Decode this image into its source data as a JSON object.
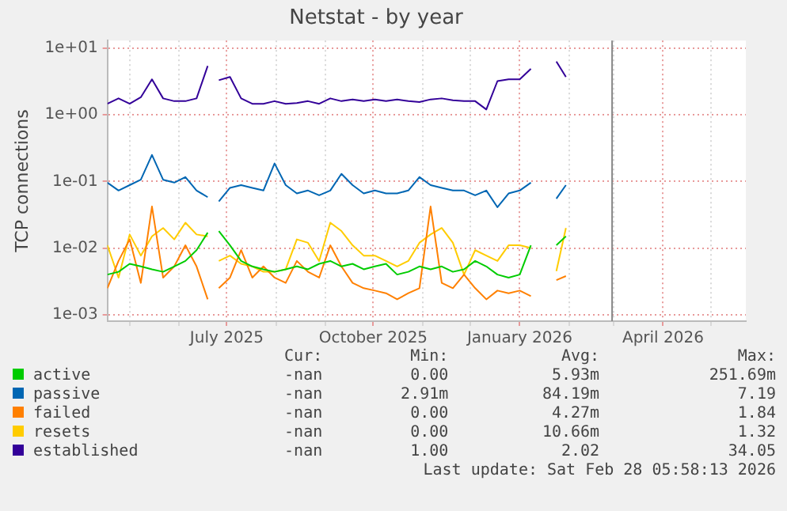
{
  "chart_data": {
    "type": "line",
    "title": "Netstat - by year",
    "ylabel": "TCP connections",
    "x": [
      "2025-04-17",
      "2025-04-24",
      "2025-05-01",
      "2025-05-08",
      "2025-05-15",
      "2025-05-22",
      "2025-05-29",
      "2025-06-05",
      "2025-06-12",
      "2025-06-19",
      "2025-06-22",
      "2025-06-26",
      "2025-07-03",
      "2025-07-10",
      "2025-07-17",
      "2025-07-24",
      "2025-07-31",
      "2025-08-07",
      "2025-08-14",
      "2025-08-21",
      "2025-08-28",
      "2025-09-04",
      "2025-09-11",
      "2025-09-18",
      "2025-09-25",
      "2025-10-02",
      "2025-10-09",
      "2025-10-16",
      "2025-10-23",
      "2025-10-30",
      "2025-11-06",
      "2025-11-13",
      "2025-11-20",
      "2025-11-27",
      "2025-12-04",
      "2025-12-11",
      "2025-12-18",
      "2025-12-25",
      "2026-01-01",
      "2026-01-08",
      "2026-01-18",
      "2026-01-24",
      "2026-01-30"
    ],
    "series": [
      {
        "name": "active",
        "color": "#00cc00",
        "values": [
          0.004,
          0.0044,
          0.0058,
          0.0053,
          0.0048,
          0.0044,
          0.0053,
          0.0064,
          0.0093,
          0.017,
          null,
          0.018,
          0.011,
          0.0064,
          0.0053,
          0.0048,
          0.0044,
          0.0048,
          0.0053,
          0.0048,
          0.0058,
          0.0064,
          0.0053,
          0.0058,
          0.0048,
          0.0053,
          0.0058,
          0.004,
          0.0044,
          0.0053,
          0.0048,
          0.0053,
          0.0044,
          0.0048,
          0.0064,
          0.0053,
          0.004,
          0.0036,
          0.004,
          0.011,
          null,
          0.011,
          0.015
        ]
      },
      {
        "name": "passive",
        "color": "#0066b3",
        "values": [
          0.096,
          0.073,
          0.088,
          0.106,
          0.25,
          0.106,
          0.096,
          0.116,
          0.073,
          0.058,
          null,
          0.05,
          0.08,
          0.088,
          0.08,
          0.073,
          0.186,
          0.088,
          0.066,
          0.073,
          0.062,
          0.073,
          0.13,
          0.088,
          0.066,
          0.073,
          0.066,
          0.066,
          0.073,
          0.116,
          0.088,
          0.08,
          0.073,
          0.073,
          0.062,
          0.073,
          0.041,
          0.066,
          0.073,
          0.096,
          null,
          0.055,
          0.088
        ]
      },
      {
        "name": "failed",
        "color": "#ff8000",
        "values": [
          0.0025,
          0.0064,
          0.0135,
          0.003,
          0.042,
          0.0036,
          0.0053,
          0.011,
          0.0053,
          0.0017,
          null,
          0.0025,
          0.0036,
          0.0093,
          0.0036,
          0.0053,
          0.0036,
          0.003,
          0.0064,
          0.0044,
          0.0036,
          0.011,
          0.0053,
          0.003,
          0.0025,
          0.0023,
          0.0021,
          0.0017,
          0.0021,
          0.0025,
          0.042,
          0.003,
          0.0025,
          0.004,
          0.0025,
          0.0017,
          0.0023,
          0.0021,
          0.0023,
          0.0019,
          null,
          0.0033,
          0.0038
        ]
      },
      {
        "name": "resets",
        "color": "#ffcc00",
        "values": [
          0.011,
          0.0036,
          0.016,
          0.0077,
          0.015,
          0.02,
          0.0135,
          0.024,
          0.016,
          0.015,
          null,
          0.0064,
          0.0077,
          0.0058,
          0.0053,
          0.0044,
          0.0044,
          0.0048,
          0.0135,
          0.012,
          0.0064,
          0.024,
          0.018,
          0.011,
          0.0077,
          0.0077,
          0.0064,
          0.0053,
          0.0064,
          0.012,
          0.016,
          0.02,
          0.012,
          0.004,
          0.0093,
          0.0077,
          0.0064,
          0.011,
          0.011,
          0.01,
          null,
          0.0045,
          0.02
        ]
      },
      {
        "name": "established",
        "color": "#330099",
        "values": [
          1.46,
          1.76,
          1.46,
          1.83,
          3.4,
          1.76,
          1.6,
          1.6,
          1.76,
          5.4,
          null,
          3.3,
          3.7,
          1.76,
          1.46,
          1.46,
          1.6,
          1.46,
          1.5,
          1.6,
          1.46,
          1.76,
          1.6,
          1.7,
          1.6,
          1.7,
          1.6,
          1.7,
          1.6,
          1.55,
          1.7,
          1.76,
          1.65,
          1.6,
          1.6,
          1.2,
          3.2,
          3.4,
          3.4,
          4.9,
          null,
          6.3,
          3.7
        ]
      }
    ],
    "log": "y",
    "ylim": [
      0.0008,
      13
    ],
    "yticks": [
      {
        "value": 0.001,
        "label": "1e-03"
      },
      {
        "value": 0.01,
        "label": "1e-02"
      },
      {
        "value": 0.1,
        "label": "1e-01"
      },
      {
        "value": 1,
        "label": "1e+00"
      },
      {
        "value": 10,
        "label": "1e+01"
      }
    ],
    "xlim": [
      "2025-04-17",
      "2026-05-23"
    ],
    "xticks": [
      {
        "value": "2025-05-01",
        "label": null
      },
      {
        "value": "2025-06-01",
        "label": null
      },
      {
        "value": "2025-07-01",
        "label": "July 2025"
      },
      {
        "value": "2025-08-01",
        "label": null
      },
      {
        "value": "2025-09-01",
        "label": null
      },
      {
        "value": "2025-10-01",
        "label": "October 2025"
      },
      {
        "value": "2025-11-01",
        "label": null
      },
      {
        "value": "2025-12-01",
        "label": null
      },
      {
        "value": "2026-01-01",
        "label": "January 2026"
      },
      {
        "value": "2026-02-01",
        "label": null
      },
      {
        "value": "2026-03-01",
        "label": null
      },
      {
        "value": "2026-04-01",
        "label": "April 2026"
      },
      {
        "value": "2026-05-01",
        "label": null
      }
    ],
    "ref_lines": [
      {
        "axis": "x",
        "value": "2026-02-28",
        "color": "#888888"
      }
    ],
    "grid": true,
    "legend": "bottom",
    "marker": "none",
    "line_style": "solid",
    "annotations": [
      "Cur:",
      "Min:",
      "Avg:",
      "Max:",
      "-nan",
      "0.00",
      "5.93m",
      "251.69m",
      "-nan",
      "2.91m",
      "84.19m",
      "7.19",
      "-nan",
      "0.00",
      "4.27m",
      "1.84",
      "-nan",
      "0.00",
      "10.66m",
      "1.32",
      "-nan",
      "1.00",
      "2.02",
      "34.05",
      "Last update: Sat Feb 28 05:58:13 2026"
    ]
  }
}
